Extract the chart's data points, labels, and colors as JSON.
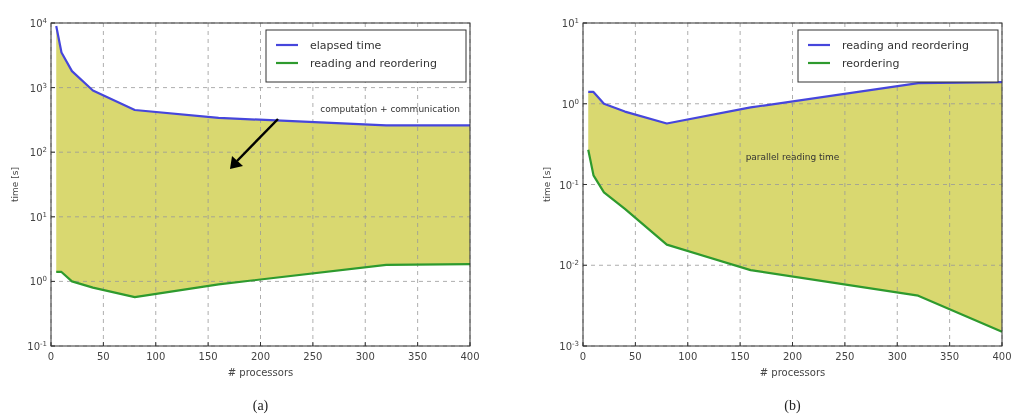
{
  "chart_data": [
    {
      "type": "line",
      "title": "(a)",
      "xlabel": "# processors",
      "ylabel": "time [s]",
      "x": [
        5,
        10,
        20,
        40,
        80,
        160,
        320,
        400
      ],
      "log": "y",
      "grid": true,
      "legend": "top right",
      "xlim": [
        0,
        400
      ],
      "xticks": [
        0,
        50,
        100,
        150,
        200,
        250,
        300,
        350,
        400
      ],
      "ylim": [
        0.1,
        10000
      ],
      "yticks": [
        {
          "value": 0.1,
          "label": "10$^{-1}$"
        },
        {
          "value": 1,
          "label": "10$^{0}$"
        },
        {
          "value": 10,
          "label": "10$^{1}$"
        },
        {
          "value": 100,
          "label": "10$^{2}$"
        },
        {
          "value": 1000,
          "label": "10$^{3}$"
        },
        {
          "value": 10000,
          "label": "10$^{4}$"
        }
      ],
      "annotations": [
        "computation + communication"
      ],
      "series": [
        {
          "name": "elapsed time",
          "color": "#4646dc",
          "values": [
            9000,
            3500,
            1800,
            900,
            450,
            340,
            260,
            260
          ],
          "lower": [
            1.4,
            1.4,
            1.0,
            0.8,
            0.57,
            0.9,
            1.8,
            1.85
          ],
          "upper": [
            9000,
            3500,
            1800,
            900,
            450,
            340,
            260,
            260
          ]
        },
        {
          "name": "reading and reordering",
          "color": "#2e9a2e",
          "values": [
            1.4,
            1.4,
            1.0,
            0.8,
            0.57,
            0.9,
            1.8,
            1.85
          ]
        }
      ]
    },
    {
      "type": "line",
      "title": "(b)",
      "xlabel": "# processors",
      "ylabel": "time [s]",
      "x": [
        5,
        10,
        20,
        40,
        80,
        160,
        320,
        400
      ],
      "log": "y",
      "grid": true,
      "legend": "top right",
      "xlim": [
        0,
        400
      ],
      "xticks": [
        0,
        50,
        100,
        150,
        200,
        250,
        300,
        350,
        400
      ],
      "ylim": [
        0.001,
        10
      ],
      "yticks": [
        {
          "value": 0.001,
          "label": "10$^{-3}$"
        },
        {
          "value": 0.01,
          "label": "10$^{-2}$"
        },
        {
          "value": 0.1,
          "label": "10$^{-1}$"
        },
        {
          "value": 1,
          "label": "10$^{0}$"
        },
        {
          "value": 10,
          "label": "10$^{1}$"
        }
      ],
      "annotations": [
        "parallel reading time"
      ],
      "series": [
        {
          "name": "reading and reordering",
          "color": "#4646dc",
          "values": [
            1.4,
            1.4,
            1.0,
            0.8,
            0.57,
            0.9,
            1.8,
            1.85
          ],
          "lower": [
            0.27,
            0.13,
            0.08,
            0.05,
            0.018,
            0.0087,
            0.0042,
            0.0015
          ],
          "upper": [
            1.4,
            1.4,
            1.0,
            0.8,
            0.57,
            0.9,
            1.8,
            1.85
          ]
        },
        {
          "name": "reordering",
          "color": "#2e9a2e",
          "values": [
            0.27,
            0.13,
            0.08,
            0.05,
            0.018,
            0.0087,
            0.0042,
            0.0015
          ]
        }
      ]
    }
  ]
}
